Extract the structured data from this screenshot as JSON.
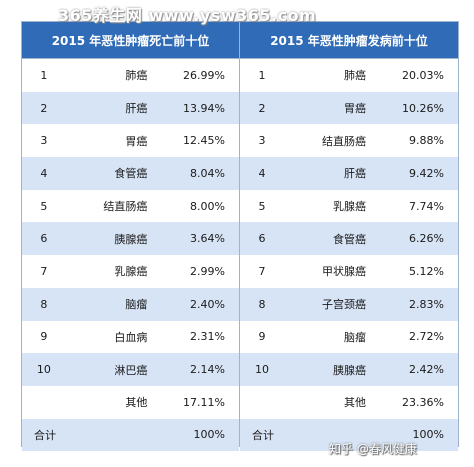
{
  "watermark": "365养生网 www.ysw365.com",
  "credit": "知乎 @春风健康",
  "left": {
    "title": "2015 年恶性肿瘤死亡前十位",
    "rows": [
      {
        "rank": "1",
        "name": "肺癌",
        "pct": "26.99%"
      },
      {
        "rank": "2",
        "name": "肝癌",
        "pct": "13.94%"
      },
      {
        "rank": "3",
        "name": "胃癌",
        "pct": "12.45%"
      },
      {
        "rank": "4",
        "name": "食管癌",
        "pct": "8.04%"
      },
      {
        "rank": "5",
        "name": "结直肠癌",
        "pct": "8.00%"
      },
      {
        "rank": "6",
        "name": "胰腺癌",
        "pct": "3.64%"
      },
      {
        "rank": "7",
        "name": "乳腺癌",
        "pct": "2.99%"
      },
      {
        "rank": "8",
        "name": "脑瘤",
        "pct": "2.40%"
      },
      {
        "rank": "9",
        "name": "白血病",
        "pct": "2.31%"
      },
      {
        "rank": "10",
        "name": "淋巴癌",
        "pct": "2.14%"
      },
      {
        "rank": "",
        "name": "其他",
        "pct": "17.11%"
      }
    ],
    "total": {
      "label": "合计",
      "pct": "100%"
    }
  },
  "right": {
    "title": "2015 年恶性肿瘤发病前十位",
    "rows": [
      {
        "rank": "1",
        "name": "肺癌",
        "pct": "20.03%"
      },
      {
        "rank": "2",
        "name": "胃癌",
        "pct": "10.26%"
      },
      {
        "rank": "3",
        "name": "结直肠癌",
        "pct": "9.88%"
      },
      {
        "rank": "4",
        "name": "肝癌",
        "pct": "9.42%"
      },
      {
        "rank": "5",
        "name": "乳腺癌",
        "pct": "7.74%"
      },
      {
        "rank": "6",
        "name": "食管癌",
        "pct": "6.26%"
      },
      {
        "rank": "7",
        "name": "甲状腺癌",
        "pct": "5.12%"
      },
      {
        "rank": "8",
        "name": "子宫颈癌",
        "pct": "2.83%"
      },
      {
        "rank": "9",
        "name": "脑瘤",
        "pct": "2.72%"
      },
      {
        "rank": "10",
        "name": "胰腺癌",
        "pct": "2.42%"
      },
      {
        "rank": "",
        "name": "其他",
        "pct": "23.36%"
      }
    ],
    "total": {
      "label": "合计",
      "pct": "100%"
    }
  },
  "colors": {
    "header": "#2f6bb6",
    "stripe": "#d7e4f6",
    "border": "#9fb3cf"
  }
}
